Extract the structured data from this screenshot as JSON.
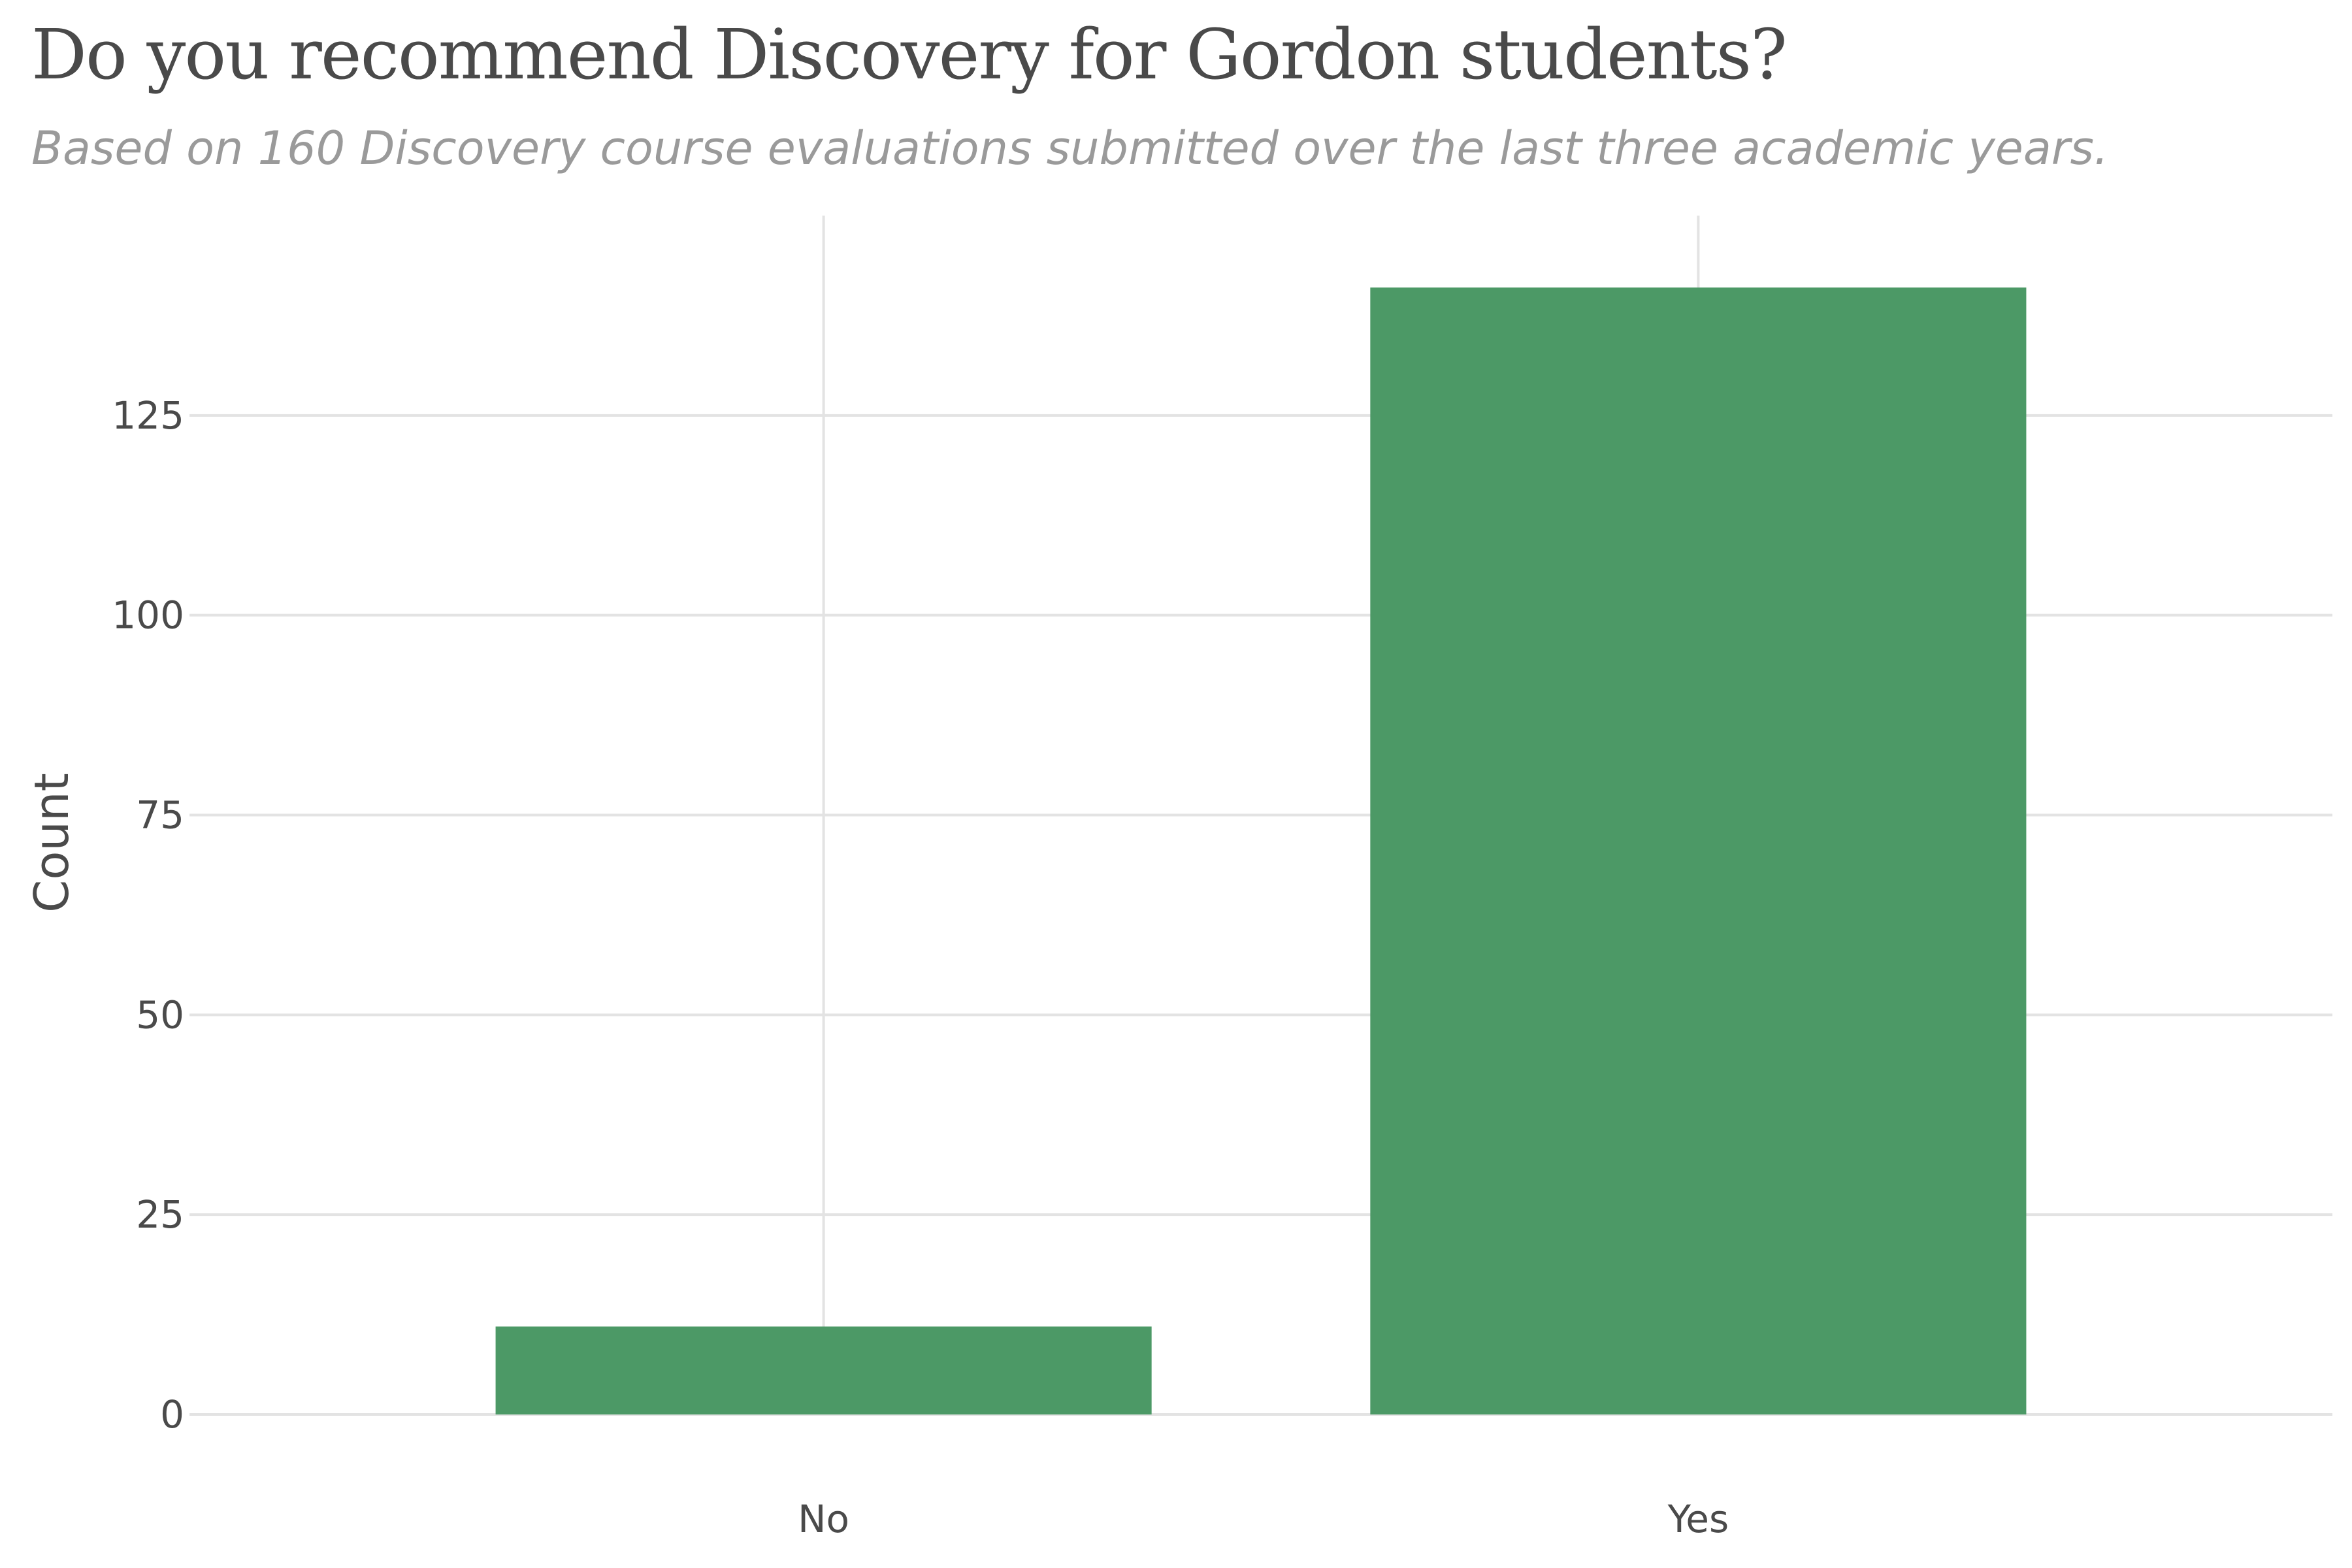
{
  "chart_data": {
    "type": "bar",
    "title": "Do you recommend Discovery for Gordon students?",
    "subtitle": "Based on 160 Discovery course evaluations submitted over the last three academic years.",
    "xlabel": "",
    "ylabel": "Count",
    "categories": [
      "No",
      "Yes"
    ],
    "values": [
      11,
      141
    ],
    "ylim": [
      0,
      150
    ],
    "yticks": [
      0,
      25,
      50,
      75,
      100,
      125
    ],
    "grid": true,
    "bar_color": "#4c9966"
  }
}
